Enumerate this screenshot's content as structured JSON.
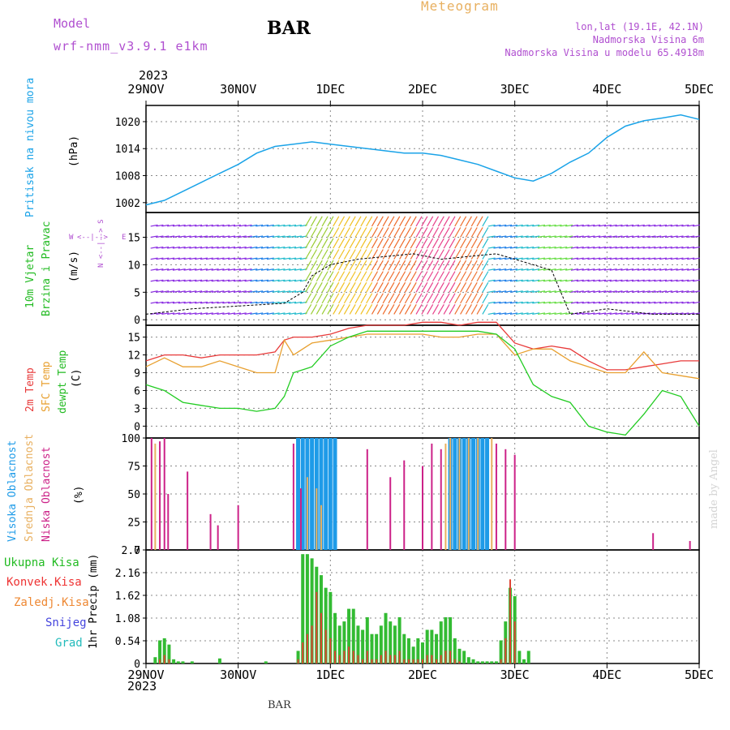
{
  "header": {
    "model_label": "Model",
    "model_name": "wrf-nmm_v3.9.1 e1km",
    "station": "BAR",
    "title": "Meteogram",
    "lonlat": "lon,lat (19.1E, 42.1N)",
    "elevation": "Nadmorska Visina 6m",
    "model_elevation": "Nadmorska Visina u modelu 65.4918m",
    "year": "2023",
    "footer_station": "BAR",
    "credit": "made by Angel"
  },
  "colors": {
    "pressure": "#1aa3e8",
    "temp2m": "#e83a3a",
    "sfc": "#e8a030",
    "dewpt": "#22cc22",
    "purple": "#b04fd0",
    "green": "#22bb22",
    "red": "#ee3333",
    "orange": "#ee8833",
    "blue": "#4444dd",
    "cyan": "#22bbbb",
    "magenta": "#cc2288",
    "high": "#1e9be8"
  },
  "x_axis": {
    "ticks": [
      "29NOV",
      "30NOV",
      "1DEC",
      "2DEC",
      "3DEC",
      "4DEC",
      "5DEC"
    ],
    "year": "2023"
  },
  "panels": {
    "pressure": {
      "label": "Pritisak na nivou mora",
      "unit": "(hPa)"
    },
    "wind": {
      "label1": "10m Vjetar",
      "label2": "Brzina i Pravac",
      "unit": "(m/s)",
      "compass_w": "W",
      "compass_e": "E",
      "compass_v": "N <--|--> S"
    },
    "temp": {
      "label1": "2m Temp",
      "label2": "SFC Temp",
      "label3": "dewpt Temp",
      "unit": "(C)"
    },
    "cloud": {
      "label1": "Visoka Oblacnost",
      "label2": "Srednja Oblacnost",
      "label3": "Niska Oblacnost",
      "unit": "(%)"
    },
    "precip": {
      "unit": "1hr Precip (mm)",
      "legend": [
        "Ukupna Kisa",
        "Konvek.Kisa",
        "Zaledj.Kisa",
        "Snijeg",
        "Grad"
      ]
    }
  },
  "chart_data": [
    {
      "type": "line",
      "title": "Pritisak na nivou mora",
      "ylabel": "(hPa)",
      "ylim": [
        999.8,
        1023.6
      ],
      "yticks": [
        1002,
        1008,
        1014,
        1020
      ],
      "x_days": [
        0,
        0.2,
        0.4,
        0.6,
        0.8,
        1.0,
        1.2,
        1.4,
        1.6,
        1.8,
        2.0,
        2.2,
        2.4,
        2.6,
        2.8,
        3.0,
        3.2,
        3.4,
        3.6,
        3.8,
        4.0,
        4.2,
        4.4,
        4.6,
        4.8,
        5.0,
        5.2,
        5.4,
        5.6,
        5.8,
        6.0
      ],
      "series": [
        {
          "values": [
            1001.5,
            1002.5,
            1004.5,
            1006.5,
            1008.5,
            1010.5,
            1013.0,
            1014.5,
            1015.0,
            1015.5,
            1015.0,
            1014.5,
            1014.0,
            1013.5,
            1013.0,
            1013.0,
            1012.5,
            1011.5,
            1010.5,
            1009.0,
            1007.5,
            1006.8,
            1008.5,
            1011.0,
            1013.0,
            1016.5,
            1019.0,
            1020.2,
            1020.8,
            1021.5,
            1020.5
          ]
        }
      ],
      "grid": true
    },
    {
      "type": "line",
      "title": "10m Vjetar Brzina i Pravac",
      "ylabel": "(m/s)",
      "ylim": [
        -1,
        19.5
      ],
      "yticks": [
        0,
        5,
        10,
        15
      ],
      "x_days": [
        0,
        0.5,
        1.0,
        1.5,
        1.7,
        1.8,
        2.0,
        2.3,
        2.6,
        2.9,
        3.2,
        3.5,
        3.8,
        4.0,
        4.2,
        4.4,
        4.6,
        5.0,
        5.5,
        6.0
      ],
      "series": [
        {
          "values": [
            1,
            2,
            2.5,
            3,
            5,
            8,
            10,
            11,
            11.5,
            12,
            11,
            11.5,
            12,
            11,
            10,
            9,
            1,
            2,
            1,
            1
          ]
        }
      ],
      "grid": true
    },
    {
      "type": "line",
      "title": "2m Temp / SFC Temp / dewpt Temp",
      "ylabel": "(C)",
      "ylim": [
        -2,
        17
      ],
      "yticks": [
        0,
        3,
        6,
        9,
        12,
        15
      ],
      "x_days": [
        0,
        0.2,
        0.4,
        0.6,
        0.8,
        1.0,
        1.2,
        1.4,
        1.5,
        1.6,
        1.8,
        2.0,
        2.2,
        2.4,
        2.6,
        2.8,
        3.0,
        3.2,
        3.4,
        3.6,
        3.8,
        4.0,
        4.2,
        4.4,
        4.6,
        4.8,
        5.0,
        5.2,
        5.4,
        5.6,
        5.8,
        6.0
      ],
      "series": [
        {
          "name": "2m Temp",
          "values": [
            11,
            12,
            12,
            11.5,
            12,
            12,
            12,
            12.5,
            14.5,
            15,
            15,
            15.5,
            16.5,
            17,
            17,
            17,
            17.5,
            17.5,
            17,
            17.5,
            17.5,
            14,
            13,
            13.5,
            13,
            11,
            9.5,
            9.5,
            10,
            10.5,
            11,
            11
          ]
        },
        {
          "name": "SFC Temp",
          "values": [
            10,
            11.5,
            10,
            10,
            11,
            10,
            9,
            9,
            14.5,
            12,
            14,
            14.5,
            15,
            15.5,
            15.5,
            15.5,
            15.5,
            15,
            15,
            15.5,
            15.5,
            12,
            13,
            13,
            11,
            10,
            9,
            9,
            12.5,
            9,
            8.5,
            8
          ]
        },
        {
          "name": "dewpt Temp",
          "values": [
            7,
            6,
            4,
            3.5,
            3,
            3,
            2.5,
            3,
            5,
            9,
            10,
            13.5,
            15,
            16,
            16,
            16,
            16,
            16,
            16,
            16,
            15.5,
            13,
            7,
            5,
            4,
            0,
            -1,
            -1.5,
            2,
            6,
            5,
            0
          ]
        }
      ],
      "grid": true
    },
    {
      "type": "bar",
      "title": "Visoka / Srednja / Niska Oblacnost",
      "ylabel": "(%)",
      "ylim": [
        0,
        100
      ],
      "yticks": [
        0,
        25,
        50,
        75,
        100
      ],
      "series": [
        {
          "name": "Visoka Oblacnost",
          "x_days": [
            1.65,
            1.7,
            1.75,
            1.8,
            1.85,
            1.9,
            1.95,
            2.0,
            2.05,
            3.3,
            3.35,
            3.4,
            3.45,
            3.5,
            3.55,
            3.6,
            3.65,
            3.7
          ],
          "values": [
            100,
            100,
            100,
            100,
            100,
            100,
            100,
            100,
            100,
            100,
            100,
            100,
            100,
            100,
            100,
            100,
            100,
            100
          ]
        },
        {
          "name": "Srednja Oblacnost",
          "x_days": [
            0.1,
            0.15,
            1.75,
            1.85,
            1.9,
            3.25,
            3.3,
            3.4,
            3.5,
            3.6,
            3.75
          ],
          "values": [
            95,
            35,
            65,
            55,
            40,
            95,
            100,
            100,
            100,
            100,
            100
          ]
        },
        {
          "name": "Niska Oblacnost",
          "x_days": [
            0.06,
            0.15,
            0.2,
            0.24,
            0.45,
            0.7,
            0.78,
            1.0,
            1.6,
            1.68,
            2.4,
            2.65,
            2.8,
            3.0,
            3.1,
            3.2,
            3.8,
            3.9,
            4.0,
            5.5,
            5.9
          ],
          "values": [
            100,
            97,
            100,
            50,
            70,
            32,
            22,
            40,
            95,
            55,
            90,
            65,
            80,
            75,
            95,
            90,
            95,
            90,
            85,
            15,
            8
          ]
        }
      ],
      "grid": true
    },
    {
      "type": "bar",
      "title": "1hr Precip",
      "ylabel": "1hr Precip (mm)",
      "ylim": [
        0,
        2.7
      ],
      "yticks": [
        0,
        0.54,
        1.08,
        1.62,
        2.16,
        2.7
      ],
      "x_days": [
        0.1,
        0.15,
        0.2,
        0.25,
        0.3,
        0.35,
        0.4,
        0.5,
        0.8,
        1.3,
        1.65,
        1.7,
        1.75,
        1.8,
        1.85,
        1.9,
        1.95,
        2.0,
        2.05,
        2.1,
        2.15,
        2.2,
        2.25,
        2.3,
        2.35,
        2.4,
        2.45,
        2.5,
        2.55,
        2.6,
        2.65,
        2.7,
        2.75,
        2.8,
        2.85,
        2.9,
        2.95,
        3.0,
        3.05,
        3.1,
        3.15,
        3.2,
        3.25,
        3.3,
        3.35,
        3.4,
        3.45,
        3.5,
        3.55,
        3.6,
        3.65,
        3.7,
        3.75,
        3.8,
        3.85,
        3.9,
        3.95,
        4.0,
        4.05,
        4.1,
        4.15
      ],
      "series": [
        {
          "name": "Ukupna Kisa",
          "values": [
            0.15,
            0.55,
            0.6,
            0.45,
            0.1,
            0.05,
            0.05,
            0.05,
            0.12,
            0.05,
            0.3,
            2.6,
            2.6,
            2.5,
            2.3,
            2.1,
            1.8,
            1.7,
            1.2,
            0.9,
            1.0,
            1.3,
            1.3,
            0.9,
            0.8,
            1.1,
            0.7,
            0.7,
            0.9,
            1.2,
            1.0,
            0.9,
            1.1,
            0.7,
            0.6,
            0.4,
            0.6,
            0.5,
            0.8,
            0.8,
            0.7,
            1.0,
            1.1,
            1.1,
            0.6,
            0.35,
            0.3,
            0.15,
            0.1,
            0.05,
            0.05,
            0.05,
            0.05,
            0.05,
            0.55,
            1.0,
            1.8,
            1.6,
            0.3,
            0.1,
            0.3
          ]
        },
        {
          "name": "Konvek.Kisa",
          "values": [
            0,
            0.1,
            0.2,
            0.1,
            0,
            0,
            0,
            0,
            0,
            0,
            0.1,
            0.5,
            0.7,
            0.9,
            1.7,
            1.2,
            0.8,
            0.6,
            0.3,
            0.2,
            0.3,
            0.4,
            0.3,
            0.2,
            0.1,
            0.3,
            0.1,
            0.1,
            0.2,
            0.3,
            0.2,
            0.2,
            0.3,
            0.1,
            0.1,
            0.1,
            0.1,
            0.1,
            0.2,
            0.2,
            0.1,
            0.2,
            0.3,
            0.3,
            0.1,
            0.05,
            0,
            0,
            0,
            0,
            0,
            0,
            0,
            0,
            0.1,
            0.6,
            2.0,
            1.0,
            0,
            0,
            0
          ]
        }
      ],
      "grid": true
    }
  ]
}
